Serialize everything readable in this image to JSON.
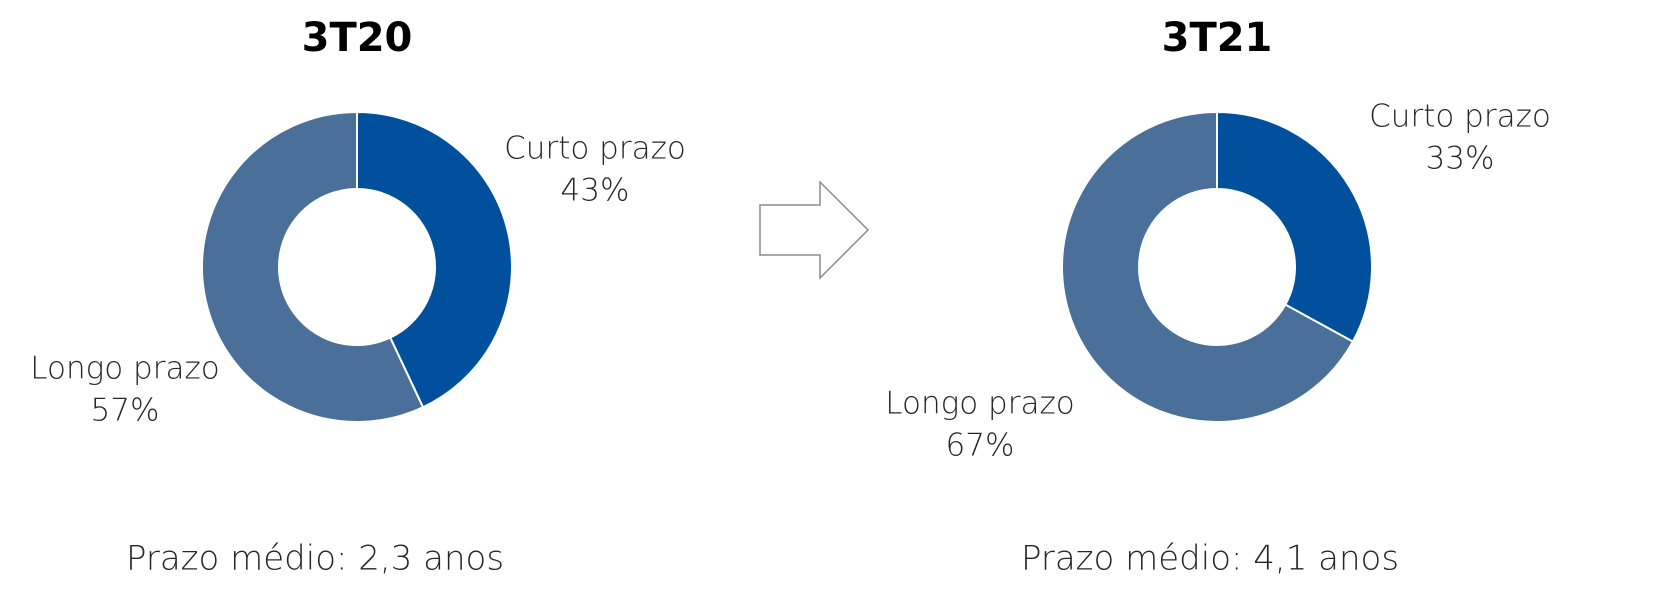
{
  "chart_data": [
    {
      "type": "donut",
      "title": "3T20",
      "categories": [
        "Curto prazo",
        "Longo prazo"
      ],
      "values": [
        43,
        57
      ],
      "value_labels": [
        "43%",
        "57%"
      ],
      "colors": [
        "#00509e",
        "#4a7099"
      ],
      "annotation": "Prazo médio: 2,3 anos"
    },
    {
      "type": "donut",
      "title": "3T21",
      "categories": [
        "Curto prazo",
        "Longo prazo"
      ],
      "values": [
        33,
        67
      ],
      "value_labels": [
        "33%",
        "67%"
      ],
      "colors": [
        "#00509e",
        "#4a7099"
      ],
      "annotation": "Prazo médio: 4,1 anos"
    }
  ]
}
